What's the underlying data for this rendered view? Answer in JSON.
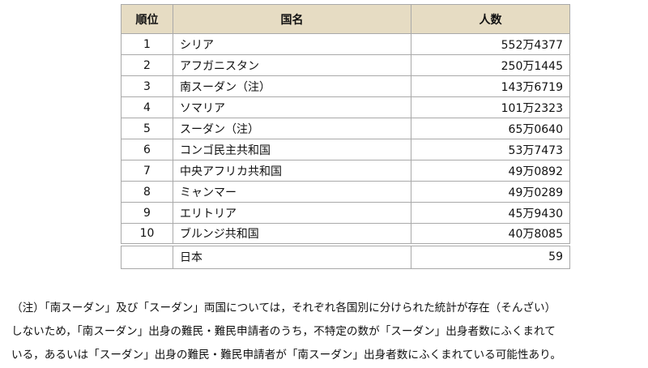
{
  "table": {
    "headers": {
      "rank": "順位",
      "country": "国名",
      "count": "人数"
    },
    "rows": [
      {
        "rank": "1",
        "country": "シリア",
        "count": "552万4377"
      },
      {
        "rank": "2",
        "country": "アフガニスタン",
        "count": "250万1445"
      },
      {
        "rank": "3",
        "country": "南スーダン（注）",
        "count": "143万6719"
      },
      {
        "rank": "4",
        "country": "ソマリア",
        "count": "101万2323"
      },
      {
        "rank": "5",
        "country": "スーダン（注）",
        "count": "65万0640"
      },
      {
        "rank": "6",
        "country": "コンゴ民主共和国",
        "count": "53万7473"
      },
      {
        "rank": "7",
        "country": "中央アフリカ共和国",
        "count": "49万0892"
      },
      {
        "rank": "8",
        "country": "ミャンマー",
        "count": "49万0289"
      },
      {
        "rank": "9",
        "country": "エリトリア",
        "count": "45万9430"
      },
      {
        "rank": "10",
        "country": "ブルンジ共和国",
        "count": "40万8085"
      }
    ],
    "japan": {
      "rank": "",
      "country": "日本",
      "count": "59"
    }
  },
  "note": {
    "lines": [
      "（注）「南スーダン」及び「スーダン」両国については，それぞれ各国別に分けられた統計が存在（そんざい）",
      "しないため，「南スーダン」出身の難民・難民申請者のうち，不特定の数が「スーダン」出身者数にふくまれて",
      "いる，あるいは「スーダン」出身の難民・難民申請者が「南スーダン」出身者数にふくまれている可能性あり。"
    ]
  }
}
